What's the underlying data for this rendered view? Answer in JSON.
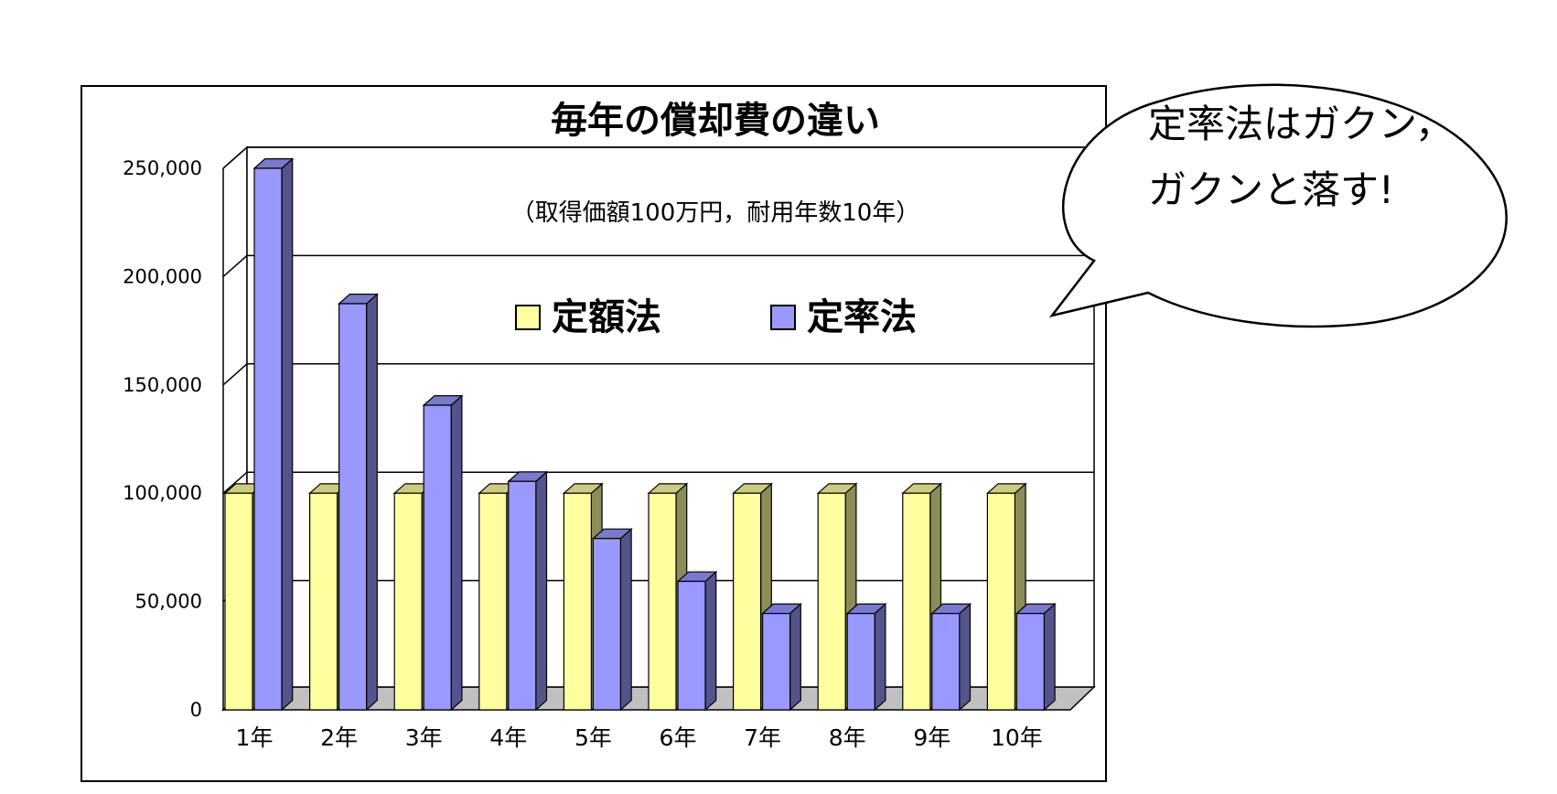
{
  "chart_data": {
    "type": "bar",
    "title": "毎年の償却費の違い",
    "subtitle": "（取得価額100万円，耐用年数10年）",
    "categories": [
      "1年",
      "2年",
      "3年",
      "4年",
      "5年",
      "6年",
      "7年",
      "8年",
      "9年",
      "10年"
    ],
    "series": [
      {
        "name": "定額法",
        "color": "#ffffa0",
        "values": [
          100000,
          100000,
          100000,
          100000,
          100000,
          100000,
          100000,
          100000,
          100000,
          100000
        ]
      },
      {
        "name": "定率法",
        "color": "#9999ff",
        "values": [
          250000,
          187500,
          140625,
          105469,
          79102,
          59326,
          44495,
          44495,
          44495,
          44495
        ]
      }
    ],
    "yticks": [
      "0",
      "50,000",
      "100,000",
      "150,000",
      "200,000",
      "250,000"
    ],
    "ylim": [
      0,
      250000
    ],
    "grid": true,
    "legend_position": "top-center"
  },
  "callout": {
    "lines": [
      "定率法はガクン，",
      "ガクンと落す!"
    ]
  }
}
